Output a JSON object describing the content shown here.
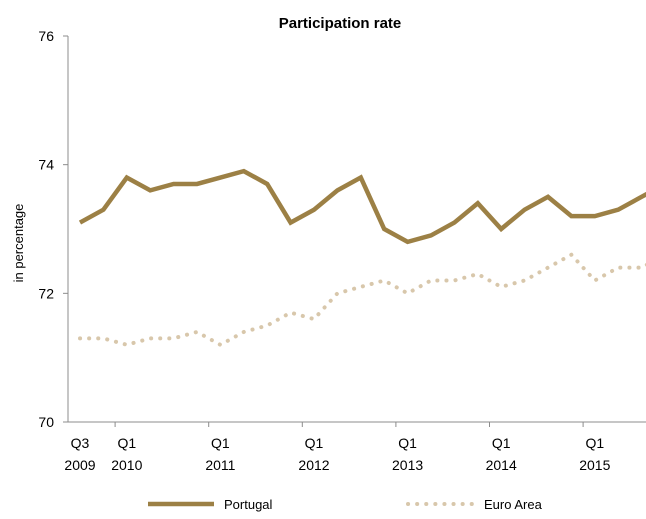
{
  "chart_data": {
    "type": "line",
    "title": "Participation rate",
    "ylabel": "in percentage",
    "xlabel": "",
    "ylim": [
      70,
      76
    ],
    "yticks": [
      70,
      72,
      74,
      76
    ],
    "ytick_labels": [
      "70",
      "72",
      "74",
      "76"
    ],
    "x": [
      "Q3 2009",
      "Q4 2009",
      "Q1 2010",
      "Q2 2010",
      "Q3 2010",
      "Q4 2010",
      "Q1 2011",
      "Q2 2011",
      "Q3 2011",
      "Q4 2011",
      "Q1 2012",
      "Q2 2012",
      "Q3 2012",
      "Q4 2012",
      "Q1 2013",
      "Q2 2013",
      "Q3 2013",
      "Q4 2013",
      "Q1 2014",
      "Q2 2014",
      "Q3 2014",
      "Q4 2014",
      "Q1 2015",
      "Q2 2015",
      "Q3 2015",
      "Q4 2015"
    ],
    "tick_labels": [
      {
        "index": 0,
        "line1": "Q3",
        "line2": "2009"
      },
      {
        "index": 2,
        "line1": "Q1",
        "line2": "2010"
      },
      {
        "index": 6,
        "line1": "Q1",
        "line2": "2011"
      },
      {
        "index": 10,
        "line1": "Q1",
        "line2": "2012"
      },
      {
        "index": 14,
        "line1": "Q1",
        "line2": "2013"
      },
      {
        "index": 18,
        "line1": "Q1",
        "line2": "2014"
      },
      {
        "index": 22,
        "line1": "Q1",
        "line2": "2015"
      }
    ],
    "series": [
      {
        "name": "Portugal",
        "color": "#9c8045",
        "style": "solid",
        "values": [
          73.1,
          73.3,
          73.8,
          73.6,
          73.7,
          73.7,
          73.8,
          73.9,
          73.7,
          73.1,
          73.3,
          73.6,
          73.8,
          73.0,
          72.8,
          72.9,
          73.1,
          73.4,
          73.0,
          73.3,
          73.5,
          73.2,
          73.2,
          73.3,
          73.5,
          73.7
        ]
      },
      {
        "name": "Euro Area",
        "color": "#d8c7ab",
        "style": "dotted",
        "values": [
          71.3,
          71.3,
          71.2,
          71.3,
          71.3,
          71.4,
          71.2,
          71.4,
          71.5,
          71.7,
          71.6,
          72.0,
          72.1,
          72.2,
          72.0,
          72.2,
          72.2,
          72.3,
          72.1,
          72.2,
          72.4,
          72.6,
          72.2,
          72.4,
          72.4,
          72.6
        ]
      }
    ],
    "grid": false,
    "legend_position": "bottom"
  }
}
